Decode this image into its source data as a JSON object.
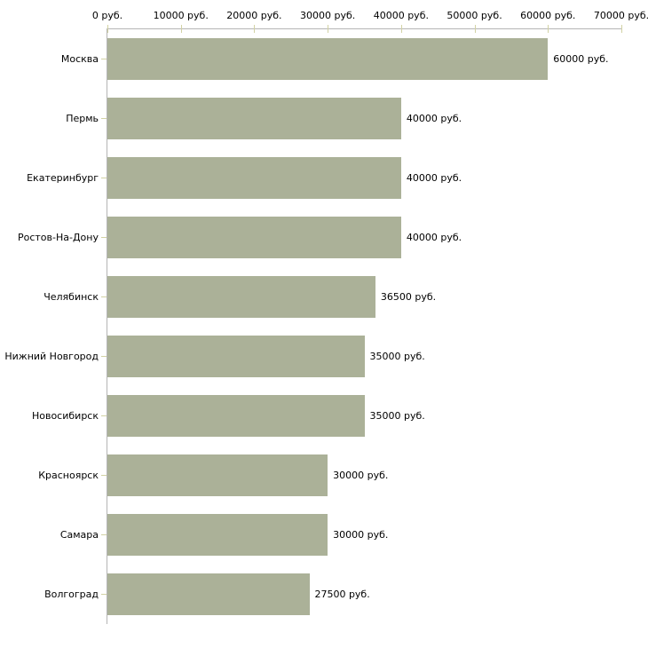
{
  "chart_data": {
    "type": "bar",
    "orientation": "horizontal",
    "title": "",
    "xlabel": "",
    "ylabel": "",
    "categories": [
      "Москва",
      "Пермь",
      "Екатеринбург",
      "Ростов-На-Дону",
      "Челябинск",
      "Нижний Новгород",
      "Новосибирск",
      "Красноярск",
      "Самара",
      "Волгоград"
    ],
    "values": [
      60000,
      40000,
      40000,
      40000,
      36500,
      35000,
      35000,
      30000,
      30000,
      27500
    ],
    "value_labels": [
      "60000 руб.",
      "40000 руб.",
      "40000 руб.",
      "40000 руб.",
      "36500 руб.",
      "35000 руб.",
      "35000 руб.",
      "30000 руб.",
      "30000 руб.",
      "27500 руб."
    ],
    "x_axis": {
      "position": "top",
      "tick_values": [
        0,
        10000,
        20000,
        30000,
        40000,
        50000,
        60000,
        70000
      ],
      "tick_labels": [
        "0 руб.",
        "10000 руб.",
        "20000 руб.",
        "30000 руб.",
        "40000 руб.",
        "50000 руб.",
        "60000 руб.",
        "70000 руб."
      ]
    },
    "xlim": [
      0,
      70000
    ],
    "grid": false,
    "legend": false,
    "colors": {
      "bar": "#abb198",
      "axis_line": "#b5b5b5",
      "tick": "#d2d2a4",
      "text": "#000000",
      "background": "#ffffff"
    }
  }
}
